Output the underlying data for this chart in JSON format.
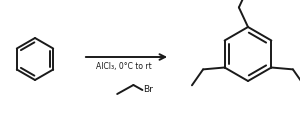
{
  "bg_color": "#ffffff",
  "line_color": "#1a1a1a",
  "line_width": 1.4,
  "arrow_text": "AlCl₃, 0°C to rt",
  "reagent_text": "Br",
  "fig_width": 3.0,
  "fig_height": 1.22,
  "dpi": 100
}
